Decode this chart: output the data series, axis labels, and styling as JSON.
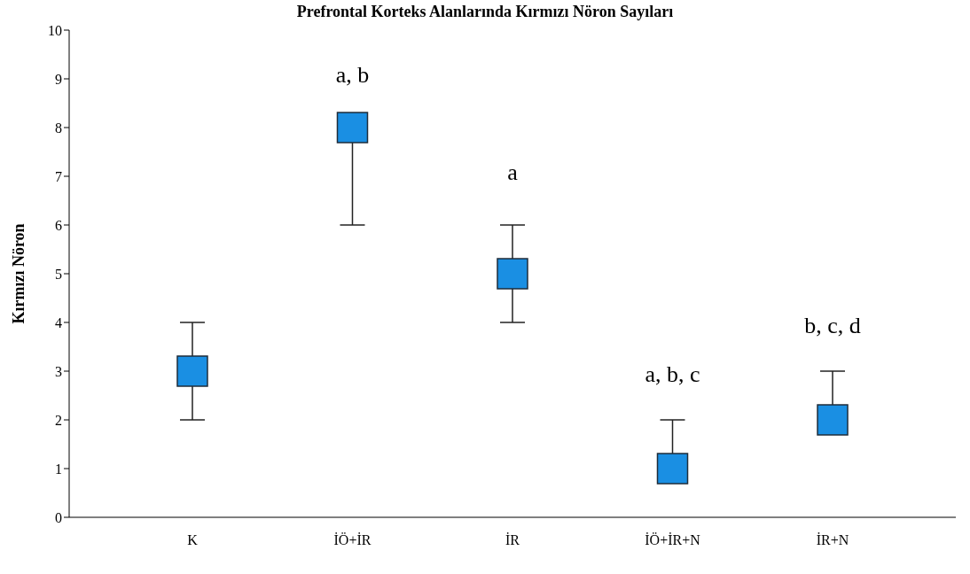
{
  "chart_data": {
    "type": "scatter",
    "title": "Prefrontal Korteks Alanlarında Kırmızı Nöron Sayıları",
    "ylabel": "Kırmızı Nöron",
    "categories": [
      "K",
      "İÖ+İR",
      "İR",
      "İÖ+İR+N",
      "İR+N"
    ],
    "series": [
      {
        "color": "#1a8fe3",
        "values": [
          3,
          8,
          5,
          1,
          2
        ],
        "errors": [
          [
            2,
            4
          ],
          [
            6,
            8
          ],
          [
            4,
            6
          ],
          [
            1,
            2
          ],
          [
            2,
            3
          ]
        ]
      }
    ],
    "marker": "square",
    "ylim": [
      0,
      10
    ],
    "yticks": [
      0,
      1,
      2,
      3,
      4,
      5,
      6,
      7,
      8,
      9,
      10
    ],
    "grid": false,
    "legend": false,
    "annotations": [
      "a, b",
      "a",
      "a, b, c",
      "b, c, d"
    ]
  }
}
